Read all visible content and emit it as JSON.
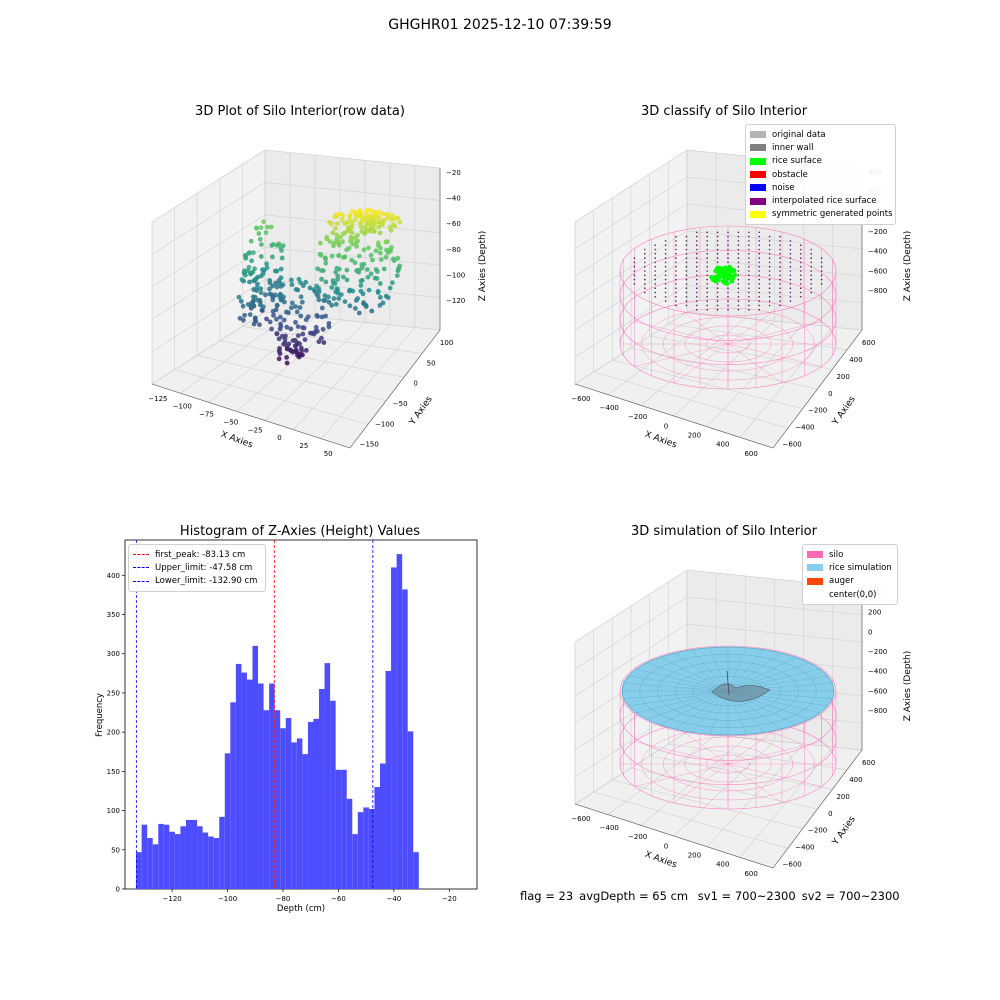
{
  "figure_title": "GHGHR01 2025-12-10 07:39:59",
  "footer": {
    "flag": "flag = 23",
    "avg_depth": "avgDepth = 65 cm",
    "sv1": "sv1 = 700~2300",
    "sv2": "sv2 = 700~2300"
  },
  "chart_data": [
    {
      "type": "scatter",
      "title": "3D Plot of Silo Interior(row data)",
      "xlabel": "X Axies",
      "ylabel": "Y Axies",
      "zlabel": "Z Axies (Depth)",
      "x_ticks": [
        "−125",
        "−100",
        "−75",
        "−50",
        "−25",
        "0",
        "25",
        "50"
      ],
      "y_ticks": [
        "100",
        "50",
        "0",
        "−50",
        "−100",
        "−150"
      ],
      "z_ticks": [
        "−20",
        "−40",
        "−60",
        "−80",
        "−100",
        "−120"
      ],
      "colormap": "viridis"
    },
    {
      "type": "scatter",
      "title": "3D classify of Silo Interior",
      "xlabel": "X Axies",
      "ylabel": "Y Axies",
      "zlabel": "Z Axies (Depth)",
      "x_ticks": [
        "−600",
        "−400",
        "−200",
        "0",
        "200",
        "400",
        "600"
      ],
      "y_ticks": [
        "600",
        "400",
        "200",
        "0",
        "−200",
        "−400",
        "−600"
      ],
      "z_ticks": [
        "400",
        "200",
        "0",
        "−200",
        "−400",
        "−600",
        "−800"
      ],
      "legend": [
        {
          "label": "original data",
          "color": "#b3b3b3"
        },
        {
          "label": "inner wall",
          "color": "#808080"
        },
        {
          "label": "rice surface",
          "color": "#00ff00"
        },
        {
          "label": "obstacle",
          "color": "#ff0000"
        },
        {
          "label": "noise",
          "color": "#0000ff"
        },
        {
          "label": "interpolated rice surface",
          "color": "#800080"
        },
        {
          "label": "symmetric generated points",
          "color": "#ffff00"
        }
      ]
    },
    {
      "type": "bar",
      "title": "Histogram of Z-Axies (Height) Values",
      "xlabel": "Depth (cm)",
      "ylabel": "Frequency",
      "xlim": [
        -137,
        -10
      ],
      "ylim": [
        0,
        445
      ],
      "x_ticks": [
        -120,
        -100,
        -80,
        -60,
        -40,
        -20
      ],
      "y_ticks": [
        0,
        50,
        100,
        150,
        200,
        250,
        300,
        350,
        400
      ],
      "bin_start": -133,
      "bin_width": 2,
      "values": [
        47,
        82,
        65,
        57,
        83,
        82,
        73,
        70,
        80,
        88,
        88,
        80,
        72,
        67,
        65,
        92,
        173,
        238,
        287,
        276,
        267,
        310,
        262,
        228,
        262,
        228,
        205,
        218,
        187,
        192,
        172,
        213,
        217,
        255,
        288,
        240,
        152,
        152,
        115,
        70,
        98,
        104,
        102,
        130,
        160,
        278,
        410,
        427,
        382,
        201,
        47
      ],
      "bar_color": "#4d4dff",
      "vlines": [
        {
          "label": "first_peak: -83.13 cm",
          "x": -83.13,
          "color": "#ff0000"
        },
        {
          "label": "Upper_limit: -47.58 cm",
          "x": -47.58,
          "color": "#0000ff"
        },
        {
          "label": "Lower_limit: -132.90 cm",
          "x": -132.9,
          "color": "#0000ff"
        }
      ],
      "legend_position": "upper-left"
    },
    {
      "type": "scatter",
      "title": "3D simulation of Silo Interior",
      "xlabel": "X Axies",
      "ylabel": "Y Axies",
      "zlabel": "Z Axies (Depth)",
      "x_ticks": [
        "−600",
        "−400",
        "−200",
        "0",
        "200",
        "400",
        "600"
      ],
      "y_ticks": [
        "600",
        "400",
        "200",
        "0",
        "−200",
        "−400",
        "−600"
      ],
      "z_ticks": [
        "400",
        "200",
        "0",
        "−200",
        "−400",
        "−600",
        "−800"
      ],
      "legend": [
        {
          "label": "silo",
          "color": "#ff69b4"
        },
        {
          "label": "rice simulation",
          "color": "#87ceeb"
        },
        {
          "label": "auger",
          "color": "#ff4500"
        },
        {
          "label": "center(0,0)",
          "color": "none"
        }
      ]
    }
  ]
}
